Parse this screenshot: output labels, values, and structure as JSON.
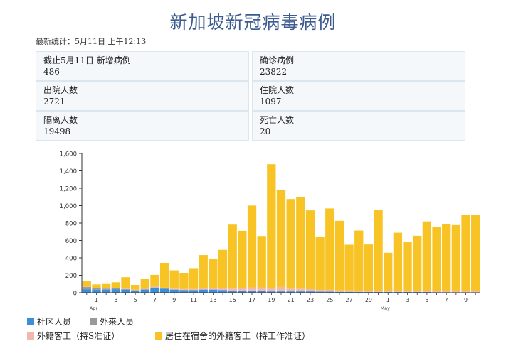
{
  "page": {
    "title": "新加坡新冠病毒病例",
    "updated": "最新统计：5月11日 上午12:13"
  },
  "stats": [
    {
      "label": "截止5月11日 新增病例",
      "value": "486"
    },
    {
      "label": "确诊病例",
      "value": "23822"
    },
    {
      "label": "出院人数",
      "value": "2721"
    },
    {
      "label": "住院人数",
      "value": "1097"
    },
    {
      "label": "隔离人数",
      "value": "19498"
    },
    {
      "label": "死亡人数",
      "value": "20"
    }
  ],
  "legend": [
    {
      "label": "社区人员",
      "color": "#3b8fd9"
    },
    {
      "label": "外来人员",
      "color": "#999999"
    },
    {
      "label": "外籍客工（持S准证）",
      "color": "#f2b8b0"
    },
    {
      "label": "居住在宿舍的外籍客工（持工作准证）",
      "color": "#f7c325"
    }
  ],
  "chart_data": {
    "type": "bar",
    "stacked": true,
    "ylim": [
      0,
      1600
    ],
    "yticks": [
      "0",
      "200",
      "400",
      "600",
      "800",
      "1,000",
      "1,200",
      "1,400",
      "1,600"
    ],
    "categories": [
      "Mar 31",
      "Apr 1",
      "Apr 2",
      "Apr 3",
      "Apr 4",
      "Apr 5",
      "Apr 6",
      "Apr 7",
      "Apr 8",
      "Apr 9",
      "Apr 10",
      "Apr 11",
      "Apr 12",
      "Apr 13",
      "Apr 14",
      "Apr 15",
      "Apr 16",
      "Apr 17",
      "Apr 18",
      "Apr 19",
      "Apr 20",
      "Apr 21",
      "Apr 22",
      "Apr 23",
      "Apr 24",
      "Apr 25",
      "Apr 26",
      "Apr 27",
      "Apr 28",
      "Apr 29",
      "Apr 30",
      "May 1",
      "May 2",
      "May 3",
      "May 4",
      "May 5",
      "May 6",
      "May 7",
      "May 8",
      "May 9",
      "May 10"
    ],
    "xtick_labels": [
      {
        "index": 1,
        "label": "1",
        "sub": "Apr"
      },
      {
        "index": 3,
        "label": "3"
      },
      {
        "index": 5,
        "label": "5"
      },
      {
        "index": 7,
        "label": "7"
      },
      {
        "index": 9,
        "label": "9"
      },
      {
        "index": 11,
        "label": "11"
      },
      {
        "index": 13,
        "label": "13"
      },
      {
        "index": 15,
        "label": "15"
      },
      {
        "index": 17,
        "label": "17"
      },
      {
        "index": 19,
        "label": "19"
      },
      {
        "index": 21,
        "label": "21"
      },
      {
        "index": 23,
        "label": "23"
      },
      {
        "index": 25,
        "label": "25"
      },
      {
        "index": 27,
        "label": "27"
      },
      {
        "index": 29,
        "label": "29"
      },
      {
        "index": 31,
        "label": "1",
        "sub": "May"
      },
      {
        "index": 33,
        "label": "3"
      },
      {
        "index": 35,
        "label": "5"
      },
      {
        "index": 37,
        "label": "7"
      },
      {
        "index": 39,
        "label": "9"
      }
    ],
    "series": [
      {
        "name": "社区人员",
        "color": "#3b8fd9",
        "values": [
          40,
          35,
          35,
          40,
          35,
          25,
          35,
          55,
          45,
          35,
          30,
          30,
          35,
          35,
          30,
          20,
          20,
          25,
          20,
          15,
          15,
          15,
          15,
          15,
          12,
          12,
          10,
          10,
          8,
          8,
          8,
          8,
          8,
          8,
          8,
          8,
          6,
          6,
          6,
          5,
          5
        ]
      },
      {
        "name": "外来人员",
        "color": "#999999",
        "values": [
          25,
          15,
          10,
          10,
          8,
          5,
          5,
          5,
          3,
          2,
          2,
          2,
          2,
          2,
          2,
          2,
          1,
          1,
          1,
          1,
          1,
          1,
          1,
          1,
          1,
          1,
          1,
          1,
          1,
          1,
          1,
          1,
          1,
          1,
          1,
          1,
          1,
          1,
          1,
          1,
          1
        ]
      },
      {
        "name": "外籍客工（持S准证）",
        "color": "#f2b8b0",
        "values": [
          5,
          5,
          5,
          5,
          5,
          5,
          5,
          10,
          10,
          10,
          10,
          10,
          15,
          15,
          20,
          25,
          30,
          35,
          40,
          40,
          50,
          30,
          30,
          25,
          20,
          20,
          15,
          15,
          15,
          10,
          10,
          10,
          10,
          10,
          10,
          10,
          10,
          10,
          10,
          10,
          10
        ]
      },
      {
        "name": "居住在宿舍的外籍客工（持工作准证）",
        "color": "#f7c325",
        "values": [
          60,
          40,
          50,
          65,
          130,
          55,
          110,
          135,
          285,
          210,
          185,
          240,
          380,
          340,
          440,
          735,
          660,
          940,
          590,
          1420,
          1115,
          1030,
          1050,
          905,
          610,
          935,
          800,
          525,
          690,
          535,
          930,
          440,
          670,
          560,
          635,
          800,
          740,
          770,
          760,
          880,
          880
        ]
      }
    ]
  }
}
